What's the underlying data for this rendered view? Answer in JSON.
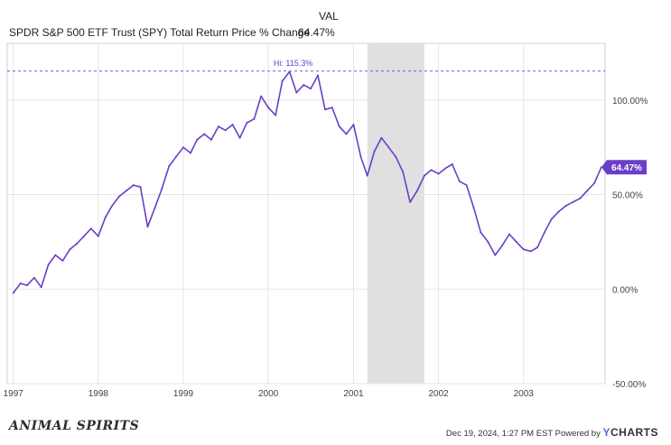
{
  "legend": {
    "column_header": "VAL",
    "series_label": "SPDR S&P 500 ETF Trust (SPY) Total Return Price % Change",
    "series_value": "64.47%"
  },
  "chart_data": {
    "type": "line",
    "series": [
      {
        "name": "SPDR S&P 500 ETF Trust (SPY) Total Return Price % Change",
        "color": "#6a3fc8",
        "x": [
          "1997-01",
          "1997-02",
          "1997-03",
          "1997-04",
          "1997-05",
          "1997-06",
          "1997-07",
          "1997-08",
          "1997-09",
          "1997-10",
          "1997-11",
          "1997-12",
          "1998-01",
          "1998-02",
          "1998-03",
          "1998-04",
          "1998-05",
          "1998-06",
          "1998-07",
          "1998-08",
          "1998-09",
          "1998-10",
          "1998-11",
          "1998-12",
          "1999-01",
          "1999-02",
          "1999-03",
          "1999-04",
          "1999-05",
          "1999-06",
          "1999-07",
          "1999-08",
          "1999-09",
          "1999-10",
          "1999-11",
          "1999-12",
          "2000-01",
          "2000-02",
          "2000-03",
          "2000-04",
          "2000-05",
          "2000-06",
          "2000-07",
          "2000-08",
          "2000-09",
          "2000-10",
          "2000-11",
          "2000-12",
          "2001-01",
          "2001-02",
          "2001-03",
          "2001-04",
          "2001-05",
          "2001-06",
          "2001-07",
          "2001-08",
          "2001-09",
          "2001-10",
          "2001-11",
          "2001-12",
          "2002-01",
          "2002-02",
          "2002-03",
          "2002-04",
          "2002-05",
          "2002-06",
          "2002-07",
          "2002-08",
          "2002-09",
          "2002-10",
          "2002-11",
          "2002-12",
          "2003-01",
          "2003-02",
          "2003-03",
          "2003-04",
          "2003-05",
          "2003-06",
          "2003-07",
          "2003-08",
          "2003-09",
          "2003-10",
          "2003-11",
          "2003-12"
        ],
        "values": [
          -2,
          3,
          2,
          6,
          1,
          13,
          18,
          15,
          21,
          24,
          28,
          32,
          28,
          38,
          44,
          49,
          52,
          55,
          54,
          33,
          43,
          53,
          65,
          70,
          75,
          72,
          79,
          82,
          79,
          86,
          84,
          87,
          80,
          88,
          90,
          102,
          96,
          92,
          110,
          115,
          104,
          108,
          106,
          113,
          95,
          96,
          86,
          82,
          87,
          70,
          60,
          73,
          80,
          75,
          70,
          62,
          46,
          52,
          60,
          63,
          61,
          64,
          66,
          57,
          55,
          43,
          30,
          25,
          18,
          23,
          29,
          25,
          21,
          20,
          22,
          30,
          37,
          41,
          44,
          46,
          48,
          52,
          56,
          64.47
        ]
      }
    ],
    "ylim": [
      -50,
      130
    ],
    "yticks": [
      {
        "value": 100,
        "label": "100.00%"
      },
      {
        "value": 50,
        "label": "50.00%"
      },
      {
        "value": 0,
        "label": "0.00%"
      },
      {
        "value": -50,
        "label": "-50.00%"
      }
    ],
    "xticks": [
      {
        "value": "1997-01",
        "label": "1997"
      },
      {
        "value": "1998-01",
        "label": "1998"
      },
      {
        "value": "1999-01",
        "label": "1999"
      },
      {
        "value": "2000-01",
        "label": "2000"
      },
      {
        "value": "2001-01",
        "label": "2001"
      },
      {
        "value": "2002-01",
        "label": "2002"
      },
      {
        "value": "2003-01",
        "label": "2003"
      }
    ],
    "recession_shading": {
      "start": "2001-03",
      "end": "2001-11",
      "color": "#e0e0e0"
    },
    "high_marker": {
      "value": 115.3,
      "label": "Hi: 115.3%",
      "at": "2000-04"
    },
    "end_label": "64.47%",
    "grid": true
  },
  "footer": {
    "logo_text": "ANIMAL SPIRITS",
    "timestamp_text": "Dec 19, 2024, 1:27 PM EST Powered by",
    "brand_y": "Y",
    "brand_rest": "CHARTS"
  }
}
